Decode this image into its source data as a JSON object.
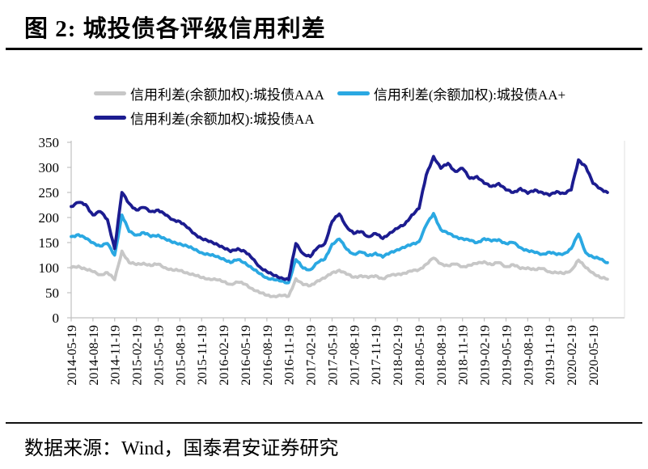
{
  "header": {
    "title": "图 2:  城投债各评级信用利差"
  },
  "footer": {
    "source": "数据来源：Wind，国泰君安证券研究"
  },
  "chart_data": {
    "type": "line",
    "title": "城投债各评级信用利差",
    "x_unit": "monthly samples from 2014-05 to 2020-07",
    "x_tick_labels": [
      "2014-05-19",
      "2014-08-19",
      "2014-11-19",
      "2015-02-19",
      "2015-05-19",
      "2015-08-19",
      "2015-11-19",
      "2016-02-19",
      "2016-05-19",
      "2016-08-19",
      "2016-11-19",
      "2017-02-19",
      "2017-05-19",
      "2017-08-19",
      "2017-11-19",
      "2018-02-19",
      "2018-05-19",
      "2018-08-19",
      "2018-11-19",
      "2019-02-19",
      "2019-05-19",
      "2019-08-19",
      "2019-11-19",
      "2020-02-19",
      "2020-05-19"
    ],
    "x_tick_interval_months": 3,
    "ylim": [
      0,
      350
    ],
    "y_ticks": [
      0,
      50,
      100,
      150,
      200,
      250,
      300,
      350
    ],
    "grid": false,
    "legend_position": "top",
    "axis_color": "#c0c0c0",
    "text_color": "#000000",
    "series": [
      {
        "name": "信用利差(余额加权):城投债AAA",
        "color": "#c7c7c7",
        "values": [
          100,
          103,
          97,
          92,
          86,
          90,
          76,
          133,
          110,
          106,
          109,
          104,
          107,
          100,
          95,
          94,
          90,
          85,
          80,
          78,
          76,
          72,
          67,
          71,
          67,
          58,
          50,
          45,
          43,
          44,
          43,
          78,
          66,
          64,
          74,
          79,
          90,
          95,
          87,
          81,
          84,
          80,
          84,
          78,
          84,
          87,
          89,
          93,
          96,
          107,
          119,
          108,
          104,
          107,
          102,
          105,
          108,
          112,
          106,
          110,
          102,
          106,
          98,
          100,
          96,
          98,
          92,
          90,
          88,
          95,
          115,
          100,
          90,
          80,
          77
        ]
      },
      {
        "name": "信用利差(余额加权):城投债AA+",
        "color": "#2aa8e2",
        "values": [
          162,
          166,
          158,
          150,
          143,
          148,
          125,
          205,
          172,
          165,
          170,
          162,
          165,
          157,
          150,
          148,
          143,
          136,
          130,
          126,
          122,
          118,
          110,
          116,
          110,
          98,
          88,
          80,
          76,
          73,
          70,
          116,
          99,
          96,
          110,
          117,
          147,
          157,
          137,
          127,
          131,
          124,
          129,
          121,
          130,
          136,
          140,
          147,
          152,
          185,
          208,
          176,
          168,
          162,
          158,
          154,
          150,
          158,
          153,
          156,
          148,
          150,
          140,
          134,
          130,
          127,
          131,
          126,
          128,
          138,
          167,
          130,
          121,
          117,
          110
        ]
      },
      {
        "name": "信用利差(余额加权):城投债AA",
        "color": "#1c1c90",
        "values": [
          222,
          230,
          226,
          205,
          212,
          196,
          138,
          250,
          228,
          215,
          220,
          212,
          215,
          205,
          196,
          192,
          180,
          168,
          158,
          152,
          148,
          140,
          132,
          138,
          132,
          118,
          102,
          92,
          84,
          80,
          76,
          148,
          128,
          122,
          140,
          148,
          192,
          207,
          182,
          168,
          172,
          162,
          168,
          158,
          170,
          178,
          186,
          205,
          218,
          285,
          322,
          298,
          308,
          292,
          298,
          278,
          282,
          268,
          262,
          268,
          255,
          250,
          258,
          248,
          255,
          250,
          244,
          252,
          248,
          255,
          315,
          302,
          268,
          258,
          250
        ]
      }
    ]
  }
}
